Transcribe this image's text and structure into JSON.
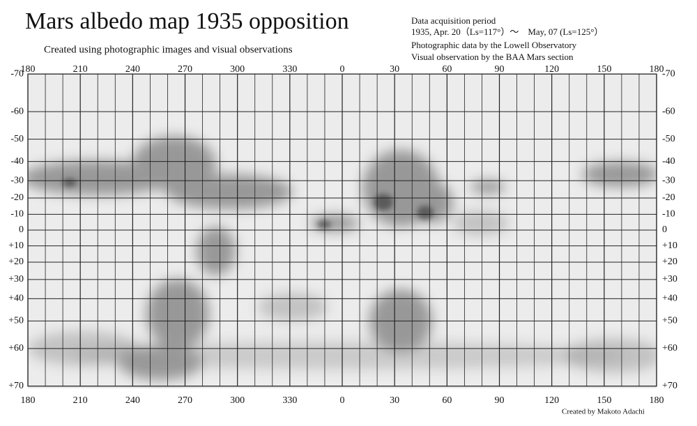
{
  "title": "Mars albedo map 1935 opposition",
  "subtitle": "Created using photographic images and visual observations",
  "info": [
    "Data acquisition period",
    "1935, Apr. 20（Ls=117°）～　May, 07 (Ls=125°）",
    "Photographic data by the Lowell Observatory",
    "Visual observation by the BAA Mars section"
  ],
  "longitudes": [
    180,
    210,
    240,
    270,
    300,
    330,
    0,
    30,
    60,
    90,
    120,
    150,
    180
  ],
  "latitudes": [
    "-70",
    "-60",
    "-50",
    "-40",
    "-30",
    "-20",
    "-10",
    "0",
    "+10",
    "+20",
    "+30",
    "+40",
    "+50",
    "+60",
    "+70"
  ],
  "credit": "Created by Makoto Adachi"
}
